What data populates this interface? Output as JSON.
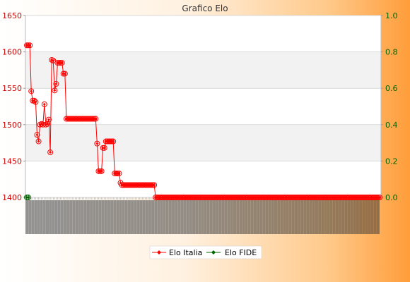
{
  "chart_data": {
    "type": "line",
    "title": "Grafico Elo",
    "xlabel": "",
    "ylabel": "",
    "ylim": [
      1400,
      1650
    ],
    "y2lim": [
      0.0,
      1.0
    ],
    "yticks": [
      "1400",
      "1450",
      "1500",
      "1550",
      "1600",
      "1650"
    ],
    "y2ticks": [
      "0.0",
      "0.2",
      "0.4",
      "0.6",
      "0.8",
      "1.0"
    ],
    "grid": true,
    "legend_position": "bottom-center",
    "series": [
      {
        "name": "Elo Italia",
        "color": "#ff0000",
        "axis": "left",
        "values": [
          1609,
          1609,
          1609,
          1546,
          1533,
          1533,
          1531,
          1486,
          1477,
          1500,
          1501,
          1500,
          1528,
          1500,
          1501,
          1507,
          1462,
          1589,
          1588,
          1547,
          1556,
          1585,
          1585,
          1585,
          1585,
          1570,
          1570,
          1508,
          1508,
          1508,
          1508,
          1508,
          1508,
          1508,
          1508,
          1508,
          1508,
          1508,
          1508,
          1508,
          1508,
          1508,
          1508,
          1508,
          1508,
          1508,
          1508,
          1508,
          1474,
          1436,
          1436,
          1436,
          1468,
          1468,
          1477,
          1477,
          1477,
          1477,
          1477,
          1477,
          1433,
          1433,
          1433,
          1433,
          1420,
          1417,
          1417,
          1417,
          1417,
          1417,
          1417,
          1417,
          1417,
          1417,
          1417,
          1417,
          1417,
          1417,
          1417,
          1417,
          1417,
          1417,
          1417,
          1417,
          1417,
          1417,
          1417,
          1417,
          1400,
          1400,
          1400,
          1400,
          1400,
          1400,
          1400,
          1400,
          1400,
          1400,
          1400,
          1400,
          1400,
          1400,
          1400,
          1400,
          1400,
          1400,
          1400,
          1400,
          1400,
          1400,
          1400,
          1400,
          1400,
          1400,
          1400,
          1400,
          1400,
          1400,
          1400,
          1400,
          1400,
          1400,
          1400,
          1400,
          1400,
          1400,
          1400,
          1400,
          1400,
          1400,
          1400,
          1400,
          1400,
          1400,
          1400,
          1400,
          1400,
          1400,
          1400,
          1400,
          1400,
          1400,
          1400,
          1400,
          1400,
          1400,
          1400,
          1400,
          1400,
          1400,
          1400,
          1400,
          1400,
          1400,
          1400,
          1400,
          1400,
          1400,
          1400,
          1400,
          1400,
          1400,
          1400,
          1400,
          1400,
          1400,
          1400,
          1400,
          1400,
          1400,
          1400,
          1400,
          1400,
          1400,
          1400,
          1400,
          1400,
          1400,
          1400,
          1400,
          1400,
          1400,
          1400,
          1400,
          1400,
          1400,
          1400,
          1400,
          1400,
          1400,
          1400,
          1400,
          1400,
          1400,
          1400,
          1400,
          1400,
          1400,
          1400,
          1400,
          1400,
          1400,
          1400,
          1400,
          1400,
          1400,
          1400,
          1400,
          1400,
          1400,
          1400,
          1400,
          1400,
          1400,
          1400,
          1400,
          1400,
          1400,
          1400,
          1400,
          1400,
          1400,
          1400,
          1400,
          1400,
          1400,
          1400,
          1400,
          1400,
          1400,
          1400,
          1400,
          1400,
          1400,
          1400,
          1400,
          1400,
          1400,
          1400,
          1400,
          1400,
          1400
        ]
      },
      {
        "name": "Elo FIDE",
        "color": "#006400",
        "axis": "right",
        "values": [
          0.0,
          0.0
        ]
      }
    ]
  }
}
